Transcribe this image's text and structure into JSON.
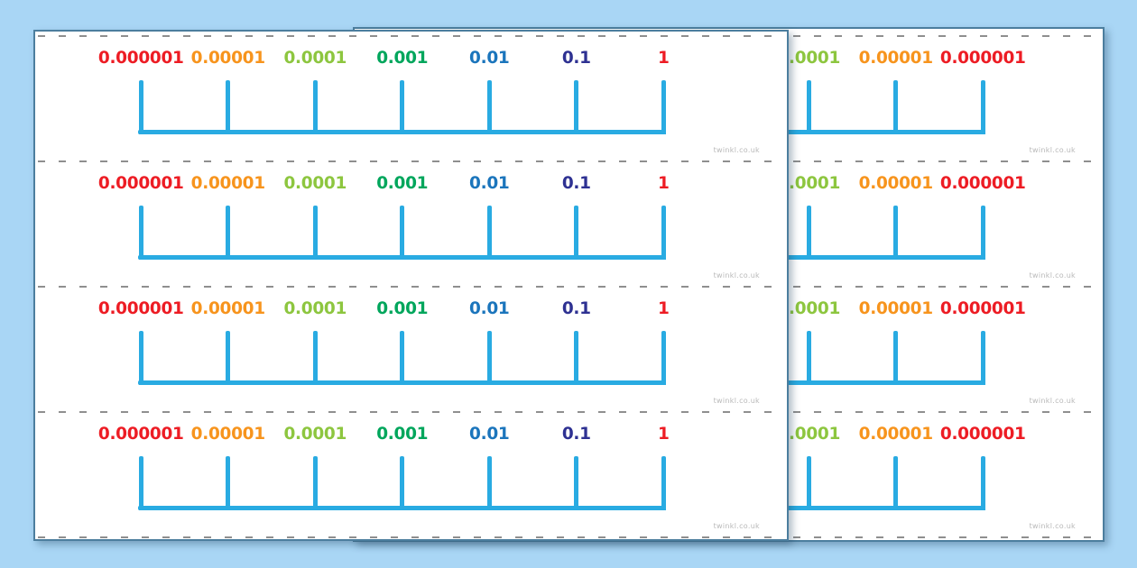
{
  "colors": {
    "background": "#a9d6f5",
    "page_background": "#ffffff",
    "page_border": "#4c7e9e",
    "number_line": "#29abe2",
    "cut_line_dash": "#8f8f8f",
    "watermark": "#b9b9b9"
  },
  "watermark_text": "twinkl.co.uk",
  "number_line_values": [
    {
      "label": "0.000001",
      "color": "#ed1c24"
    },
    {
      "label": "0.00001",
      "color": "#f7941d"
    },
    {
      "label": "0.0001",
      "color": "#8dc63f"
    },
    {
      "label": "0.001",
      "color": "#00a65c"
    },
    {
      "label": "0.01",
      "color": "#1b75bc"
    },
    {
      "label": "0.1",
      "color": "#2e3192"
    },
    {
      "label": "1",
      "color": "#ed1c24"
    }
  ],
  "pages": [
    {
      "id": "front",
      "label_order": "ascending",
      "strip_count": 4
    },
    {
      "id": "back",
      "label_order": "descending",
      "strip_count": 4
    }
  ]
}
